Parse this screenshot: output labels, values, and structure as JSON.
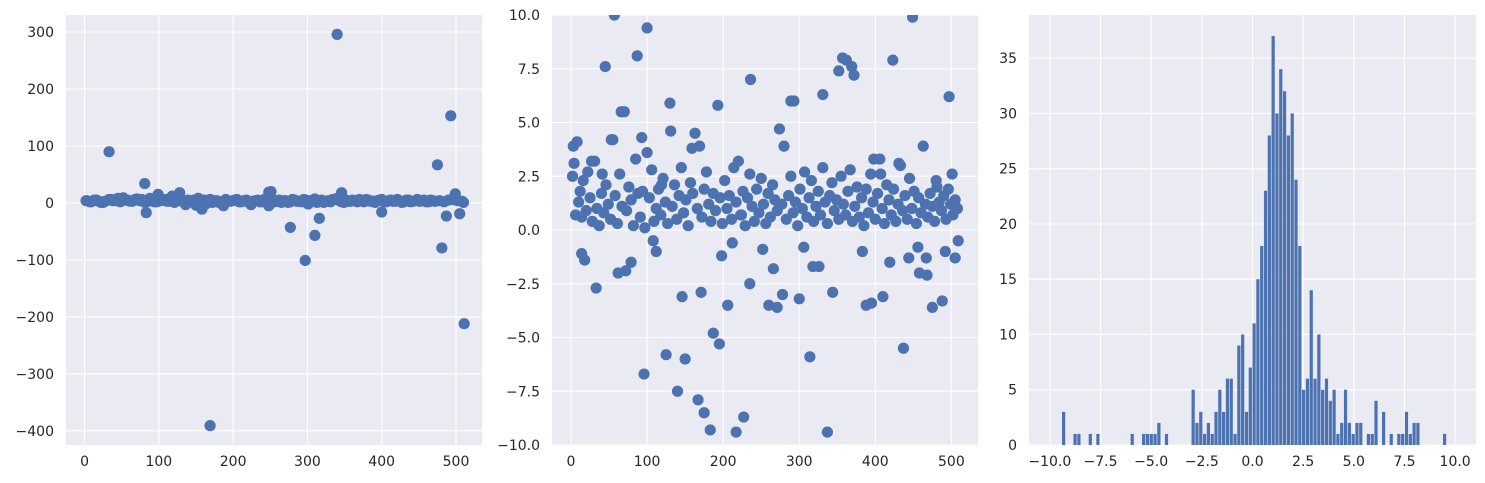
{
  "chart_data": [
    {
      "id": "full_scatter",
      "type": "scatter",
      "title": "",
      "xlabel": "",
      "ylabel": "",
      "xlim": [
        -25,
        535
      ],
      "ylim": [
        -425,
        330
      ],
      "xticks": [
        0,
        100,
        200,
        300,
        400,
        500
      ],
      "yticks": [
        -400,
        -300,
        -200,
        -100,
        0,
        100,
        200,
        300
      ],
      "grid": true,
      "color": "#4c72b0",
      "points_x": [
        2,
        7,
        13,
        19,
        25,
        33,
        38,
        45,
        52,
        58,
        64,
        71,
        77,
        83,
        88,
        94,
        99,
        105,
        111,
        118,
        124,
        130,
        136,
        141,
        147,
        153,
        158,
        163,
        169,
        175,
        181,
        187,
        193,
        199,
        205,
        211,
        218,
        224,
        230,
        236,
        242,
        248,
        251,
        256,
        262,
        268,
        274,
        280,
        286,
        292,
        298,
        304,
        310,
        316,
        322,
        328,
        334,
        340,
        346,
        352,
        358,
        364,
        370,
        376,
        382,
        388,
        394,
        400,
        406,
        412,
        418,
        424,
        430,
        436,
        442,
        448,
        454,
        460,
        466,
        472,
        478,
        484,
        490,
        496,
        502,
        508,
        510,
        3,
        9,
        16,
        22,
        28,
        36,
        42,
        48,
        55,
        61,
        68,
        74,
        81,
        86,
        92,
        97,
        103,
        109,
        114,
        121,
        127,
        133,
        139,
        144,
        150,
        156,
        161,
        166,
        172,
        178,
        184,
        190,
        196,
        202,
        208,
        214,
        221,
        227,
        233,
        239,
        245,
        253,
        259,
        265,
        271,
        277,
        283,
        289,
        295,
        301,
        307,
        313,
        319,
        325,
        331,
        337,
        343,
        349,
        355,
        361,
        367,
        373,
        379,
        385,
        391,
        397,
        403,
        409,
        415,
        421,
        427,
        433,
        439,
        445,
        451,
        457,
        463,
        469,
        475,
        481,
        487,
        493,
        499,
        505,
        511
      ],
      "points_y": [
        4,
        2,
        5,
        3,
        1,
        6,
        4,
        8,
        9,
        5,
        3,
        7,
        6,
        4,
        8,
        2,
        7,
        5,
        3,
        12,
        6,
        4,
        -3,
        2,
        5,
        8,
        3,
        -2,
        6,
        4,
        1,
        -5,
        3,
        4,
        6,
        2,
        5,
        -3,
        4,
        2,
        6,
        -5,
        3,
        2,
        5,
        4,
        1,
        6,
        3,
        2,
        5,
        4,
        7,
        3,
        1,
        4,
        6,
        8,
        2,
        5,
        3,
        4,
        6,
        2,
        5,
        3,
        4,
        6,
        2,
        5,
        3,
        4,
        2,
        5,
        3,
        6,
        4,
        2,
        5,
        3,
        4,
        2,
        5,
        6,
        4,
        3,
        1,
        4,
        2,
        5,
        1,
        3,
        6,
        4,
        2,
        5,
        3,
        6,
        4,
        1,
        3,
        5,
        2,
        4,
        6,
        3,
        1,
        4,
        2,
        5,
        3,
        -4,
        2,
        5,
        3,
        1,
        4,
        2,
        6,
        3,
        5,
        2,
        4,
        1,
        3,
        5,
        2,
        4,
        6,
        3,
        1,
        4,
        2,
        5,
        3,
        6,
        -2,
        4,
        1,
        5,
        3,
        2,
        6,
        4,
        1,
        3,
        5,
        2,
        4,
        6,
        3,
        1,
        5,
        2,
        4,
        3,
        6,
        1,
        5,
        2,
        4,
        3,
        5,
        2,
        4
      ],
      "outliers_x": [
        33,
        83,
        81,
        99,
        124,
        128,
        158,
        169,
        248,
        251,
        277,
        297,
        310,
        316,
        340,
        346,
        400,
        398,
        422,
        437,
        468,
        492,
        510,
        303
      ],
      "outliers_y": [
        67,
        -79,
        -23,
        153,
        16,
        -19,
        -212,
        90,
        -17,
        34,
        15,
        11,
        18,
        -11,
        -391,
        19,
        20,
        -43,
        -101,
        -57,
        -27,
        296,
        18,
        -16
      ]
    },
    {
      "id": "zoomed_scatter",
      "type": "scatter",
      "title": "",
      "xlabel": "",
      "ylabel": "",
      "xlim": [
        -25,
        535
      ],
      "ylim": [
        -10,
        10
      ],
      "xticks": [
        0,
        100,
        200,
        300,
        400,
        500
      ],
      "yticks": [
        -10.0,
        -7.5,
        -5.0,
        -2.5,
        0.0,
        2.5,
        5.0,
        7.5,
        10.0
      ],
      "ytick_labels": [
        "−10.0",
        "−7.5",
        "−5.0",
        "−2.5",
        "0.0",
        "2.5",
        "5.0",
        "7.5",
        "10.0"
      ],
      "grid": true,
      "color": "#4c72b0",
      "points_x": [
        2,
        4,
        6,
        8,
        10,
        12,
        14,
        16,
        18,
        20,
        22,
        25,
        28,
        31,
        34,
        37,
        40,
        43,
        46,
        49,
        52,
        55,
        58,
        61,
        64,
        67,
        70,
        73,
        76,
        79,
        82,
        85,
        88,
        91,
        94,
        97,
        100,
        103,
        106,
        109,
        112,
        115,
        118,
        121,
        124,
        127,
        130,
        133,
        136,
        139,
        142,
        145,
        148,
        151,
        154,
        157,
        160,
        163,
        166,
        169,
        172,
        175,
        178,
        181,
        184,
        187,
        190,
        193,
        196,
        199,
        202,
        205,
        208,
        211,
        214,
        217,
        220,
        223,
        226,
        229,
        232,
        235,
        238,
        241,
        244,
        247,
        250,
        253,
        256,
        259,
        262,
        265,
        268,
        271,
        274,
        277,
        280,
        283,
        286,
        289,
        292,
        295,
        298,
        301,
        304,
        307,
        310,
        313,
        316,
        319,
        322,
        325,
        328,
        331,
        334,
        337,
        340,
        343,
        346,
        349,
        352,
        355,
        358,
        361,
        364,
        367,
        370,
        373,
        376,
        379,
        382,
        385,
        388,
        391,
        394,
        397,
        400,
        403,
        406,
        409,
        412,
        415,
        418,
        421,
        424,
        427,
        430,
        433,
        436,
        439,
        442,
        445,
        448,
        451,
        454,
        457,
        460,
        463,
        466,
        469,
        472,
        475,
        478,
        481,
        484,
        487,
        490,
        493,
        496,
        499,
        502,
        505,
        508,
        3,
        33,
        45,
        57,
        62,
        72,
        87,
        96,
        100,
        112,
        125,
        140,
        150,
        167,
        175,
        183,
        195,
        206,
        217,
        227,
        236,
        260,
        271,
        289,
        300,
        314,
        326,
        337,
        352,
        362,
        369,
        388,
        398,
        410,
        423,
        437,
        449,
        458,
        467,
        475,
        488,
        497,
        505,
        14,
        27,
        41,
        53,
        66,
        79,
        93,
        108,
        119,
        131,
        146,
        159,
        171,
        187,
        198,
        212,
        224,
        235,
        252,
        266,
        278,
        293,
        306,
        318,
        331,
        344,
        357,
        372,
        383,
        395,
        407,
        419,
        431,
        444,
        456,
        468,
        480,
        492,
        501,
        509
      ],
      "points_y": [
        2.5,
        3.1,
        0.7,
        4.1,
        1.3,
        1.8,
        0.6,
        2.3,
        -1.4,
        0.9,
        2.7,
        1.5,
        0.4,
        3.2,
        1.0,
        0.2,
        1.7,
        0.8,
        2.1,
        1.2,
        0.5,
        4.2,
        1.6,
        0.3,
        2.6,
        1.1,
        5.5,
        0.9,
        2.0,
        1.4,
        0.2,
        3.3,
        1.7,
        0.6,
        1.8,
        0.1,
        3.6,
        1.5,
        2.8,
        0.4,
        1.0,
        1.9,
        0.7,
        2.4,
        1.3,
        0.3,
        5.9,
        1.1,
        2.1,
        0.5,
        1.6,
        2.9,
        0.8,
        1.4,
        0.2,
        2.2,
        1.7,
        4.5,
        1.0,
        3.9,
        0.6,
        1.9,
        2.7,
        1.2,
        0.4,
        1.7,
        0.9,
        5.8,
        1.5,
        0.3,
        2.3,
        1.0,
        1.6,
        0.5,
        2.9,
        1.3,
        3.2,
        0.7,
        1.8,
        0.2,
        1.5,
        2.6,
        1.1,
        0.4,
        1.9,
        0.8,
        2.4,
        1.2,
        0.3,
        1.7,
        0.6,
        2.1,
        1.4,
        0.9,
        4.7,
        1.2,
        3.9,
        0.5,
        1.6,
        2.5,
        0.8,
        1.3,
        0.2,
        1.9,
        1.0,
        2.7,
        0.6,
        1.5,
        2.3,
        0.4,
        1.1,
        1.8,
        0.7,
        2.9,
        1.3,
        0.3,
        1.6,
        2.2,
        0.9,
        1.4,
        0.5,
        2.5,
        1.2,
        0.7,
        1.8,
        2.8,
        0.4,
        1.1,
        2.0,
        0.6,
        1.5,
        0.2,
        1.9,
        0.8,
        2.6,
        1.3,
        0.5,
        1.7,
        3.3,
        1.0,
        0.3,
        2.1,
        1.4,
        0.7,
        1.9,
        0.4,
        1.2,
        3.0,
        0.9,
        1.6,
        0.5,
        2.4,
        1.0,
        1.8,
        0.3,
        1.5,
        0.8,
        3.9,
        1.2,
        0.6,
        1.7,
        1.1,
        0.4,
        2.0,
        1.3,
        0.9,
        1.6,
        0.5,
        1.9,
        1.2,
        0.7,
        1.4,
        1.0,
        3.9,
        -2.7,
        7.6,
        10.0,
        -2.0,
        -1.9,
        8.1,
        -6.7,
        9.4,
        -1.0,
        -5.8,
        -7.5,
        -6.0,
        -7.9,
        -8.5,
        -9.3,
        -5.3,
        -3.5,
        -9.4,
        -8.7,
        7.0,
        -3.5,
        -3.6,
        6.0,
        -3.2,
        -5.9,
        -1.7,
        -9.4,
        7.4,
        7.9,
        7.6,
        -3.5,
        3.3,
        -3.1,
        7.9,
        -5.5,
        9.9,
        -2.0,
        -1.3,
        -3.6,
        -3.3,
        6.2,
        -1.3,
        -1.1,
        3.2,
        2.6,
        4.2,
        5.5,
        -1.5,
        4.3,
        -0.5,
        2.1,
        4.6,
        -3.1,
        3.8,
        -2.9,
        -4.8,
        -1.2,
        -0.6,
        0.7,
        -2.5,
        -0.9,
        -1.8,
        -3.0,
        6.0,
        -0.8,
        -1.7,
        6.3,
        -2.9,
        8.0,
        7.2,
        -1.0,
        -3.4,
        2.6,
        -1.5,
        3.1,
        -1.3,
        -0.8,
        -2.1,
        2.3,
        -1.0,
        2.6,
        -0.5
      ]
    },
    {
      "id": "histogram",
      "type": "bar",
      "title": "",
      "xlabel": "",
      "ylabel": "",
      "xlim": [
        -11.03,
        11.03
      ],
      "ylim": [
        0,
        38.9
      ],
      "xticks": [
        -10.0,
        -7.5,
        -5.0,
        -2.5,
        0.0,
        2.5,
        5.0,
        7.5,
        10.0
      ],
      "xtick_labels": [
        "−10.0",
        "−7.5",
        "−5.0",
        "−2.5",
        "0.0",
        "2.5",
        "5.0",
        "7.5",
        "10.0"
      ],
      "yticks": [
        0,
        5,
        10,
        15,
        20,
        25,
        30,
        35
      ],
      "grid": true,
      "color": "#4c72b0",
      "bin_start": -9.4,
      "bin_width": 0.188,
      "counts": [
        3,
        0,
        0,
        1,
        1,
        0,
        0,
        1,
        0,
        1,
        0,
        0,
        0,
        0,
        0,
        0,
        0,
        0,
        1,
        0,
        0,
        1,
        1,
        1,
        1,
        2,
        0,
        1,
        0,
        0,
        0,
        0,
        0,
        0,
        5,
        2,
        3,
        1,
        2,
        1,
        3,
        5,
        3,
        6,
        6,
        1,
        9,
        10,
        3,
        7,
        11,
        15,
        18,
        23,
        28,
        37,
        30,
        34,
        32,
        28,
        30,
        24,
        18,
        5,
        6,
        14,
        6,
        10,
        5,
        6,
        4,
        5,
        1,
        2,
        5,
        2,
        1,
        2,
        2,
        0,
        1,
        1,
        4,
        0,
        3,
        0,
        1,
        0,
        1,
        1,
        3,
        1,
        2,
        2,
        0,
        0,
        0,
        0,
        0,
        0,
        1
      ]
    }
  ]
}
